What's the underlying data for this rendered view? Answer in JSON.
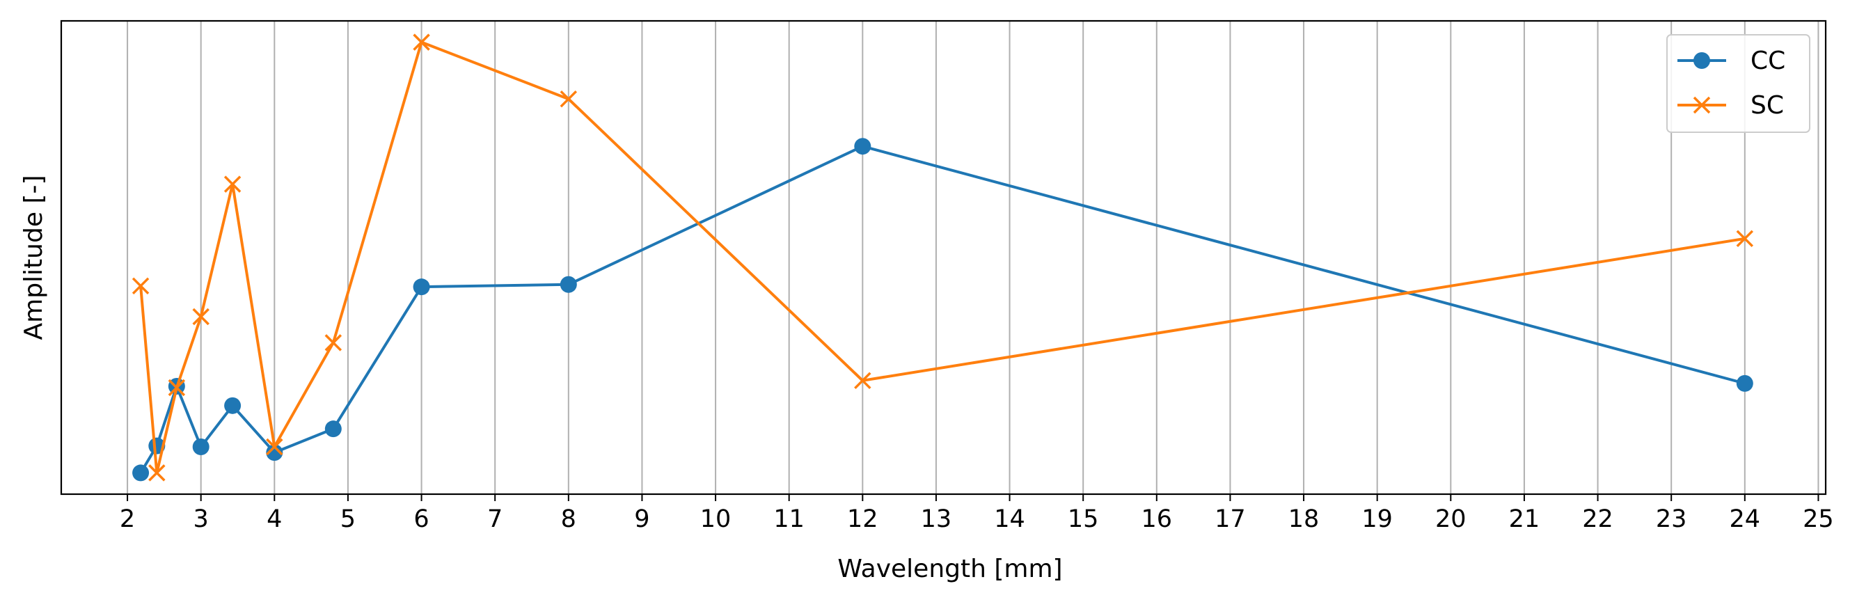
{
  "chart_data": {
    "type": "line",
    "xlabel": "Wavelength [mm]",
    "ylabel": "Amplitude [-]",
    "xlim": [
      1.1,
      25.1
    ],
    "ylim": [
      0,
      1
    ],
    "x_ticks": [
      2,
      3,
      4,
      5,
      6,
      7,
      8,
      9,
      10,
      11,
      12,
      13,
      14,
      15,
      16,
      17,
      18,
      19,
      20,
      21,
      22,
      23,
      24,
      25
    ],
    "y_ticks_shown": false,
    "grid": "vertical",
    "legend_position": "top-right",
    "series": [
      {
        "name": "CC",
        "color": "#1f77b4",
        "marker": "circle",
        "x": [
          2.18,
          2.4,
          2.67,
          3.0,
          3.43,
          4.0,
          4.8,
          6.0,
          8.0,
          12.0,
          24.0
        ],
        "y": [
          0.045,
          0.102,
          0.228,
          0.1,
          0.187,
          0.088,
          0.138,
          0.438,
          0.443,
          0.735,
          0.234
        ]
      },
      {
        "name": "SC",
        "color": "#ff7f0e",
        "marker": "x",
        "x": [
          2.18,
          2.4,
          2.67,
          3.0,
          3.43,
          4.0,
          4.8,
          6.0,
          8.0,
          12.0,
          24.0
        ],
        "y": [
          0.44,
          0.045,
          0.225,
          0.375,
          0.655,
          0.1,
          0.32,
          0.955,
          0.835,
          0.24,
          0.54
        ]
      }
    ]
  }
}
